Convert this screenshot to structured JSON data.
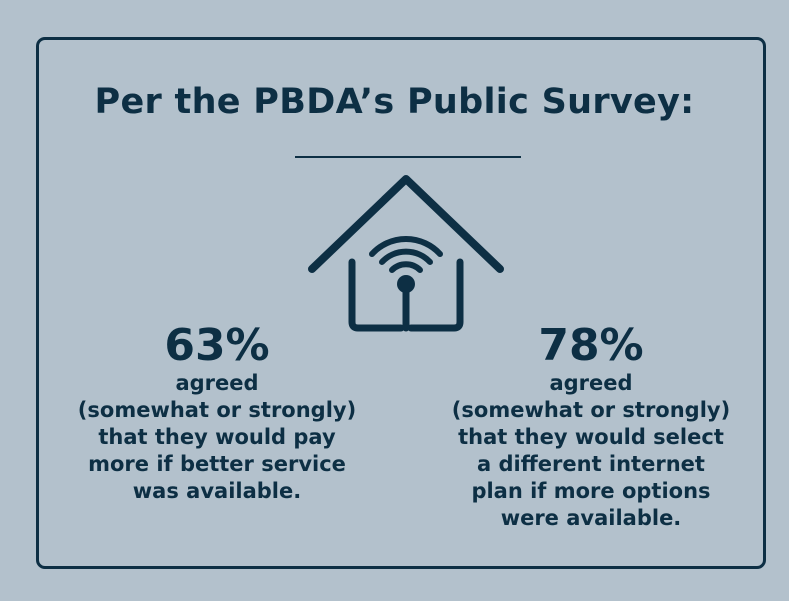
{
  "title": "Per the PBDA’s Public Survey:",
  "icon": "house-wifi-icon",
  "colors": {
    "background": "#b3c1cc",
    "ink": "#0d2f44"
  },
  "stats": [
    {
      "value": "63%",
      "label": "agreed",
      "qualifier": "(somewhat or strongly)",
      "lines": [
        "that they would pay",
        "more if better service",
        "was available."
      ]
    },
    {
      "value": "78%",
      "label": "agreed",
      "qualifier": "(somewhat or strongly)",
      "lines": [
        "that they would select",
        "a different internet",
        "plan if more options",
        "were available."
      ]
    }
  ]
}
